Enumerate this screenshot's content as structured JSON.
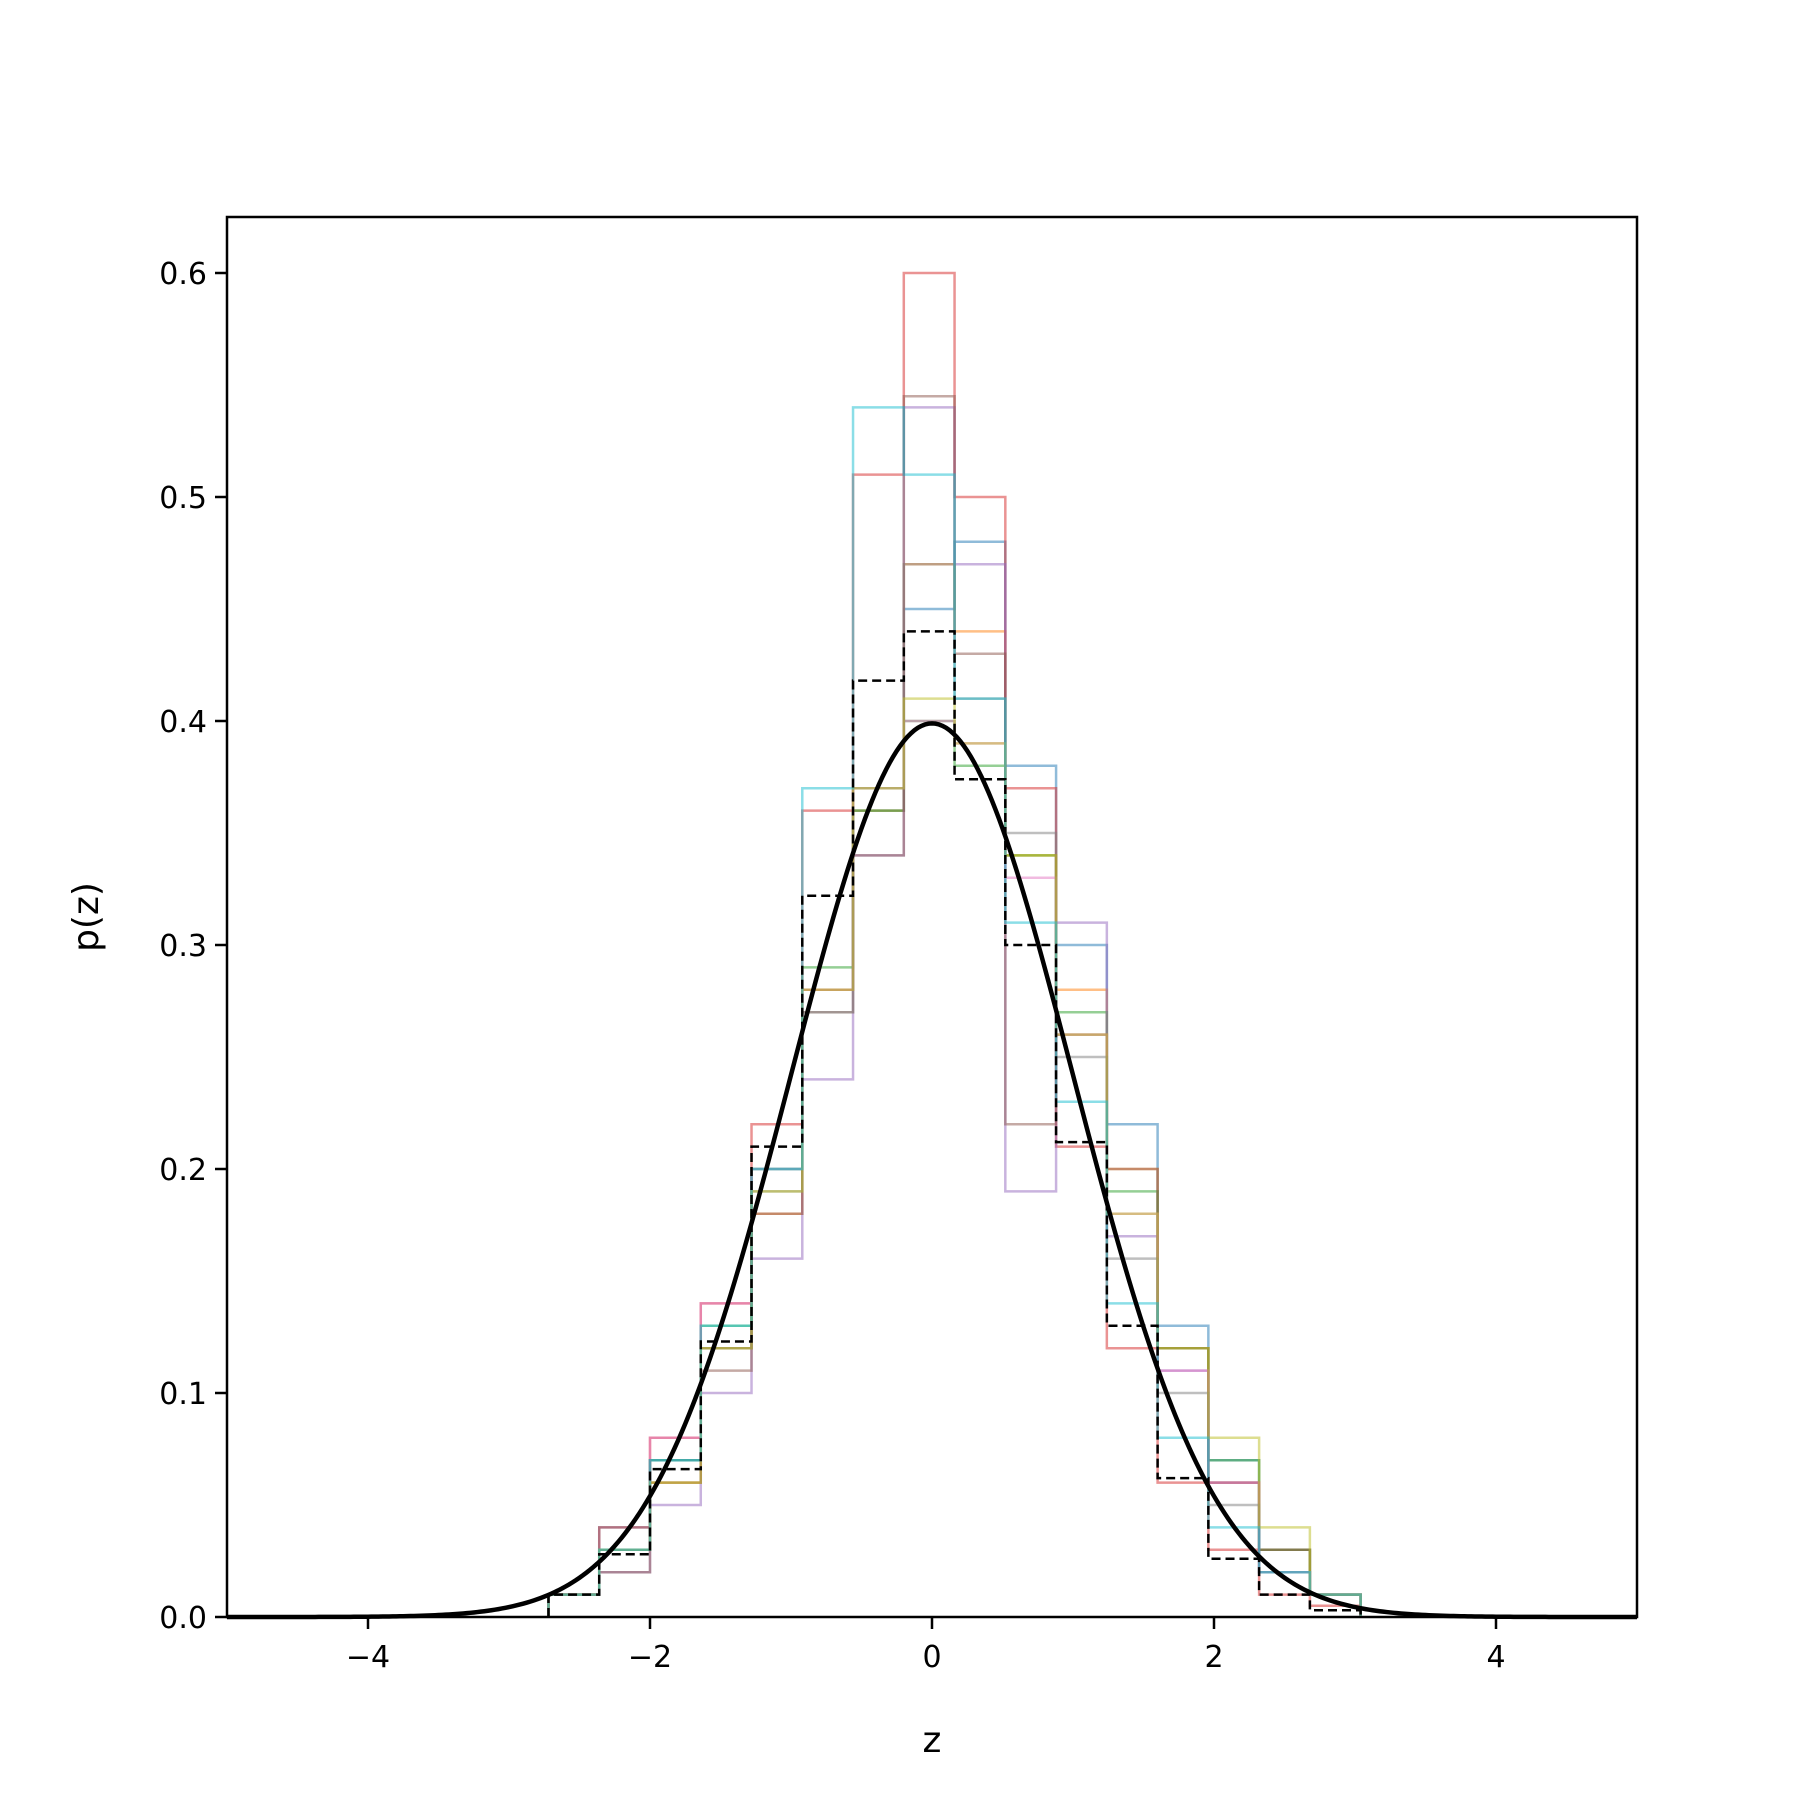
{
  "chart_data": {
    "type": "line",
    "title": "",
    "xlabel": "z",
    "ylabel": "p(z)",
    "xlim": [
      -5,
      5
    ],
    "ylim": [
      0,
      0.625
    ],
    "x_ticks": [
      -4,
      -2,
      0,
      2,
      4
    ],
    "x_tick_labels": [
      "−4",
      "−2",
      "0",
      "2",
      "4"
    ],
    "y_ticks": [
      0.0,
      0.1,
      0.2,
      0.3,
      0.4,
      0.5,
      0.6
    ],
    "y_tick_labels": [
      "0.0",
      "0.1",
      "0.2",
      "0.3",
      "0.4",
      "0.5",
      "0.6"
    ],
    "grid": false,
    "legend": "none",
    "histogram_bins": {
      "edges": [
        -2.72,
        -2.36,
        -2.0,
        -1.64,
        -1.28,
        -0.92,
        -0.56,
        -0.2,
        0.16,
        0.52,
        0.88,
        1.24,
        1.6,
        1.96,
        2.32,
        2.68,
        3.04
      ]
    },
    "series": [
      {
        "style": "thin-step",
        "color": "#1f77b4",
        "values": [
          0.01,
          0.04,
          0.07,
          0.12,
          0.2,
          0.28,
          0.36,
          0.45,
          0.48,
          0.38,
          0.3,
          0.22,
          0.13,
          0.07,
          0.03,
          0.01
        ]
      },
      {
        "style": "thin-step",
        "color": "#ff7f0e",
        "values": [
          0.01,
          0.03,
          0.06,
          0.12,
          0.18,
          0.28,
          0.36,
          0.47,
          0.44,
          0.34,
          0.28,
          0.2,
          0.12,
          0.06,
          0.03,
          0.01
        ]
      },
      {
        "style": "thin-step",
        "color": "#2ca02c",
        "values": [
          0.01,
          0.03,
          0.07,
          0.13,
          0.2,
          0.29,
          0.36,
          0.4,
          0.38,
          0.34,
          0.27,
          0.19,
          0.12,
          0.07,
          0.03,
          0.01
        ]
      },
      {
        "style": "thin-step",
        "color": "#d62728",
        "values": [
          0.01,
          0.04,
          0.08,
          0.14,
          0.22,
          0.36,
          0.51,
          0.6,
          0.5,
          0.37,
          0.21,
          0.12,
          0.06,
          0.03,
          0.01,
          0.005
        ]
      },
      {
        "style": "thin-step",
        "color": "#9467bd",
        "values": [
          0.01,
          0.02,
          0.05,
          0.1,
          0.16,
          0.24,
          0.34,
          0.54,
          0.47,
          0.19,
          0.31,
          0.17,
          0.11,
          0.06,
          0.02,
          0.01
        ]
      },
      {
        "style": "thin-step",
        "color": "#8c564b",
        "values": [
          0.01,
          0.02,
          0.06,
          0.11,
          0.18,
          0.27,
          0.34,
          0.545,
          0.43,
          0.22,
          0.26,
          0.2,
          0.12,
          0.06,
          0.03,
          0.01
        ]
      },
      {
        "style": "thin-step",
        "color": "#e377c2",
        "values": [
          0.01,
          0.03,
          0.08,
          0.14,
          0.2,
          0.28,
          0.37,
          0.4,
          0.39,
          0.33,
          0.26,
          0.18,
          0.11,
          0.06,
          0.02,
          0.01
        ]
      },
      {
        "style": "thin-step",
        "color": "#7f7f7f",
        "values": [
          0.01,
          0.03,
          0.07,
          0.12,
          0.19,
          0.27,
          0.37,
          0.47,
          0.41,
          0.35,
          0.25,
          0.16,
          0.1,
          0.05,
          0.02,
          0.01
        ]
      },
      {
        "style": "thin-step",
        "color": "#bcbd22",
        "values": [
          0.01,
          0.03,
          0.06,
          0.12,
          0.19,
          0.28,
          0.37,
          0.41,
          0.39,
          0.34,
          0.26,
          0.18,
          0.12,
          0.08,
          0.04,
          0.01
        ]
      },
      {
        "style": "thin-step",
        "color": "#17becf",
        "values": [
          0.01,
          0.03,
          0.07,
          0.13,
          0.2,
          0.37,
          0.54,
          0.51,
          0.41,
          0.31,
          0.23,
          0.14,
          0.08,
          0.04,
          0.02,
          0.01
        ]
      },
      {
        "style": "dashed-step",
        "color": "#000000",
        "values": [
          0.01,
          0.028,
          0.066,
          0.123,
          0.21,
          0.322,
          0.418,
          0.44,
          0.374,
          0.3,
          0.212,
          0.13,
          0.062,
          0.026,
          0.01,
          0.003
        ]
      },
      {
        "style": "curve",
        "color": "#000000",
        "function": "standard-normal-pdf",
        "mean": 0,
        "std": 1
      }
    ]
  }
}
